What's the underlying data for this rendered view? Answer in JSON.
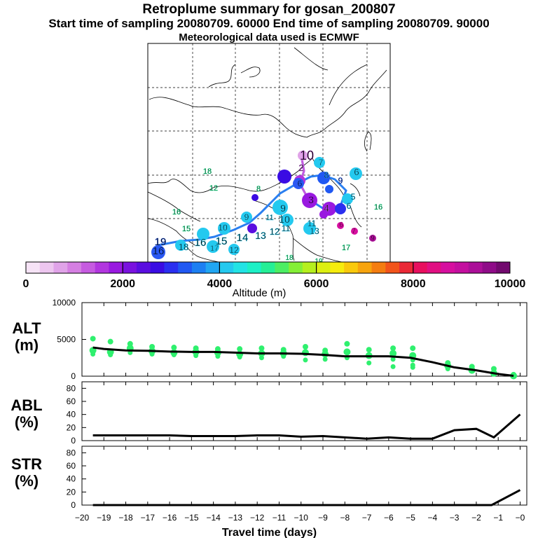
{
  "header": {
    "title": "Retroplume summary for gosan_200807",
    "sampling": "Start time of sampling 20080709. 60000     End time of sampling 20080709. 90000",
    "met": "Meteorological data used is ECMWF"
  },
  "colorbar": {
    "label": "Altitude (m)",
    "ticks": [
      "0",
      "2000",
      "4000",
      "6000",
      "8000",
      "10000"
    ],
    "colors": [
      "#f6e3f6",
      "#edc6ef",
      "#e0a3e8",
      "#d57fe2",
      "#c65be0",
      "#b236df",
      "#9919e0",
      "#7a12df",
      "#5a0ee0",
      "#3a0ce3",
      "#2a2ff0",
      "#2058f2",
      "#1c7ff2",
      "#21a6f2",
      "#24c9ef",
      "#22e3e5",
      "#1cf0c6",
      "#25ef96",
      "#4cee63",
      "#84ef36",
      "#b5ef1e",
      "#dcef11",
      "#f6ec0d",
      "#f9c90c",
      "#f7a40e",
      "#f47d10",
      "#f2541a",
      "#ea2836",
      "#e80f5e",
      "#e10f82",
      "#d60f9f",
      "#c40f9f",
      "#ab0f98",
      "#8f0c88",
      "#720a6e"
    ]
  },
  "map": {
    "labels": [
      {
        "text": "10",
        "color": "#c65be0"
      },
      {
        "text": "7",
        "color": "#24c9ef"
      },
      {
        "text": "8",
        "color": "#21a6f2"
      },
      {
        "text": "2",
        "color": "#c65be0"
      },
      {
        "text": "6",
        "color": "#24c9ef"
      },
      {
        "text": "6",
        "color": "#2058f2"
      },
      {
        "text": "9",
        "color": "#2058f2"
      },
      {
        "text": "18",
        "color": "#25ef96"
      },
      {
        "text": "12",
        "color": "#25ef96"
      },
      {
        "text": "8",
        "color": "#25ef96"
      },
      {
        "text": "3",
        "color": "#9919e0"
      },
      {
        "text": "6",
        "color": "#24c9ef"
      },
      {
        "text": "5",
        "color": "#24c9ef"
      },
      {
        "text": "16",
        "color": "#25ef96"
      },
      {
        "text": "16",
        "color": "#25ef96"
      },
      {
        "text": "9",
        "color": "#24c9ef"
      },
      {
        "text": "4",
        "color": "#c65be0"
      },
      {
        "text": "9",
        "color": "#24c9ef"
      },
      {
        "text": "10",
        "color": "#24c9ef"
      },
      {
        "text": "11",
        "color": "#24c9ef"
      },
      {
        "text": "13",
        "color": "#24c9ef"
      },
      {
        "text": "10",
        "color": "#24c9ef"
      },
      {
        "text": "15",
        "color": "#25ef96"
      },
      {
        "text": "11",
        "color": "#24c9ef"
      },
      {
        "text": "14",
        "color": "#24c9ef"
      },
      {
        "text": "13",
        "color": "#24c9ef"
      },
      {
        "text": "12",
        "color": "#24c9ef"
      },
      {
        "text": "11",
        "color": "#24c9ef"
      },
      {
        "text": "19",
        "color": "#2058f2"
      },
      {
        "text": "16",
        "color": "#2058f2"
      },
      {
        "text": "18",
        "color": "#24c9ef"
      },
      {
        "text": "16",
        "color": "#24c9ef"
      },
      {
        "text": "15",
        "color": "#24c9ef"
      },
      {
        "text": "17",
        "color": "#24c9ef"
      },
      {
        "text": "12",
        "color": "#24c9ef"
      },
      {
        "text": "17",
        "color": "#25ef96"
      },
      {
        "text": "18",
        "color": "#25ef96"
      },
      {
        "text": "19",
        "color": "#25ef96"
      },
      {
        "text": "7",
        "color": "#d60f9f"
      },
      {
        "text": "9",
        "color": "#ab0f98"
      },
      {
        "text": "6",
        "color": "#d60f9f"
      }
    ]
  },
  "chart_data": [
    {
      "type": "scatter",
      "panel": "ALT",
      "ylabel": "ALT\n(m)",
      "xlabel": "Travel time (days)",
      "xlim": [
        -20,
        0
      ],
      "ylim": [
        0,
        10000
      ],
      "yticks": [
        "0",
        "5000",
        "10000"
      ],
      "line": {
        "name": "median altitude",
        "x": [
          -19.5,
          -19,
          -18,
          -17,
          -16,
          -15,
          -14,
          -13,
          -12,
          -11,
          -10,
          -9,
          -8,
          -7,
          -6,
          -5,
          -4,
          -3,
          -2,
          -1,
          -0.3
        ],
        "y": [
          3900,
          3700,
          3500,
          3450,
          3350,
          3300,
          3300,
          3200,
          3100,
          3100,
          3050,
          2900,
          2700,
          2700,
          2700,
          2500,
          1900,
          1200,
          800,
          300,
          50
        ]
      },
      "clusters": [
        {
          "x": -19.5,
          "y": [
            5100,
            3500,
            3000
          ]
        },
        {
          "x": -18.7,
          "y": [
            4700,
            3300,
            2900
          ]
        },
        {
          "x": -17.8,
          "y": [
            4400,
            3800,
            3200
          ]
        },
        {
          "x": -16.8,
          "y": [
            4000,
            3400,
            3000
          ]
        },
        {
          "x": -15.8,
          "y": [
            3900,
            3200,
            2900
          ]
        },
        {
          "x": -14.8,
          "y": [
            3800,
            3300,
            2800
          ]
        },
        {
          "x": -13.8,
          "y": [
            3700,
            3200,
            2700
          ]
        },
        {
          "x": -12.8,
          "y": [
            3700,
            3000,
            2600
          ]
        },
        {
          "x": -11.8,
          "y": [
            3800,
            3100,
            2500
          ]
        },
        {
          "x": -10.8,
          "y": [
            3600,
            3100,
            2700
          ]
        },
        {
          "x": -9.8,
          "y": [
            4000,
            3200,
            2200
          ]
        },
        {
          "x": -8.9,
          "y": [
            3500,
            3000,
            2300
          ]
        },
        {
          "x": -7.9,
          "y": [
            4400,
            3300,
            2500
          ]
        },
        {
          "x": -6.9,
          "y": [
            3600,
            2800,
            1800
          ]
        },
        {
          "x": -5.8,
          "y": [
            3800,
            3100,
            2300,
            1300
          ]
        },
        {
          "x": -4.9,
          "y": [
            3800,
            2800,
            2200,
            1500,
            1200
          ]
        },
        {
          "x": -3.3,
          "y": [
            1800,
            1400,
            1000
          ]
        },
        {
          "x": -2.2,
          "y": [
            1300,
            800
          ]
        },
        {
          "x": -1.2,
          "y": [
            1000,
            400
          ]
        },
        {
          "x": -0.3,
          "y": [
            200,
            50
          ]
        }
      ]
    },
    {
      "type": "line",
      "panel": "ABL",
      "ylabel": "ABL\n(%)",
      "xlim": [
        -20,
        0
      ],
      "ylim": [
        0,
        90
      ],
      "yticks": [
        "0",
        "20",
        "40",
        "60",
        "80"
      ],
      "x": [
        -19.5,
        -18,
        -17,
        -16,
        -15,
        -14,
        -13,
        -12,
        -11,
        -10,
        -9,
        -8,
        -7,
        -6,
        -5,
        -4,
        -3,
        -2,
        -1.2,
        0
      ],
      "y": [
        8,
        8,
        8,
        8,
        7,
        7,
        7,
        8,
        8,
        6,
        7,
        5,
        3,
        5,
        3,
        3,
        16,
        18,
        5,
        40
      ]
    },
    {
      "type": "line",
      "panel": "STR",
      "ylabel": "STR\n(%)",
      "xlim": [
        -20,
        0
      ],
      "ylim": [
        0,
        90
      ],
      "yticks": [
        "0",
        "20",
        "40",
        "60",
        "80"
      ],
      "xticks": [
        "−20",
        "−19",
        "−18",
        "−17",
        "−16",
        "−15",
        "−14",
        "−13",
        "−12",
        "−11",
        "−10",
        "−9",
        "−8",
        "−7",
        "−6",
        "−5",
        "−4",
        "−3",
        "−2",
        "−1",
        "−0"
      ],
      "x": [
        -19.5,
        -1.3,
        0
      ],
      "y": [
        0,
        0,
        23
      ]
    }
  ]
}
